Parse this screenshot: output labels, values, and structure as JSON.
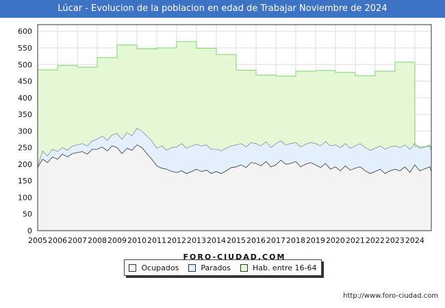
{
  "header": {
    "title": "Lúcar - Evolucion de la poblacion en edad de Trabajar Noviembre de 2024"
  },
  "footer": {
    "url": "http://www.foro-ciudad.com"
  },
  "watermark": "FORO-CIUDAD.COM",
  "colors": {
    "title_bg": "#3d73c5",
    "hab_fill": "#e4f8d6",
    "hab_line": "#7cd66a",
    "parados_fill": "#e3f0fc",
    "parados_line": "#7a8f9f",
    "ocupados_fill": "#f3f3f3",
    "ocupados_line": "#333333",
    "grid": "#dddddd",
    "axis": "#333333"
  },
  "chart_data": {
    "type": "area",
    "title": "Lúcar - Evolucion de la poblacion en edad de Trabajar Noviembre de 2024",
    "xlabel": "",
    "ylabel": "",
    "xlim": [
      2005,
      2024.83
    ],
    "ylim": [
      0,
      620
    ],
    "y_ticks": [
      0,
      50,
      100,
      150,
      200,
      250,
      300,
      350,
      400,
      450,
      500,
      550,
      600
    ],
    "x_ticks": [
      "2005",
      "2006",
      "2007",
      "2008",
      "2009",
      "2010",
      "2011",
      "2012",
      "2013",
      "2014",
      "2015",
      "2016",
      "2017",
      "2018",
      "2019",
      "2020",
      "2021",
      "2022",
      "2023",
      "2024"
    ],
    "legend": [
      "Ocupados",
      "Parados",
      "Hab. entre 16-64"
    ],
    "legend_position": "bottom",
    "grid": true,
    "series": [
      {
        "name": "Hab. entre 16-64",
        "style": "step",
        "x": [
          2005,
          2006,
          2007,
          2008,
          2009,
          2010,
          2011,
          2012,
          2013,
          2014,
          2015,
          2016,
          2017,
          2018,
          2019,
          2020,
          2021,
          2022,
          2023,
          2024,
          2024.83
        ],
        "values": [
          484,
          497,
          492,
          521,
          559,
          547,
          550,
          569,
          549,
          530,
          483,
          468,
          465,
          480,
          482,
          476,
          466,
          480,
          507,
          253,
          253
        ]
      },
      {
        "name": "Parados",
        "style": "line",
        "x": [
          2005,
          2005.25,
          2005.5,
          2005.75,
          2006,
          2006.25,
          2006.5,
          2006.75,
          2007,
          2007.25,
          2007.5,
          2007.75,
          2008,
          2008.25,
          2008.5,
          2008.75,
          2009,
          2009.25,
          2009.5,
          2009.75,
          2010,
          2010.25,
          2010.5,
          2010.75,
          2011,
          2011.25,
          2011.5,
          2011.75,
          2012,
          2012.25,
          2012.5,
          2012.75,
          2013,
          2013.25,
          2013.5,
          2013.75,
          2014,
          2014.25,
          2014.5,
          2014.75,
          2015,
          2015.25,
          2015.5,
          2015.75,
          2016,
          2016.25,
          2016.5,
          2016.75,
          2017,
          2017.25,
          2017.5,
          2017.75,
          2018,
          2018.25,
          2018.5,
          2018.75,
          2019,
          2019.25,
          2019.5,
          2019.75,
          2020,
          2020.25,
          2020.5,
          2020.75,
          2021,
          2021.25,
          2021.5,
          2021.75,
          2022,
          2022.25,
          2022.5,
          2022.75,
          2023,
          2023.25,
          2023.5,
          2023.75,
          2024,
          2024.25,
          2024.5,
          2024.75,
          2024.83
        ],
        "values": [
          192,
          240,
          225,
          245,
          238,
          250,
          242,
          255,
          258,
          262,
          255,
          270,
          275,
          285,
          272,
          288,
          292,
          275,
          295,
          285,
          308,
          300,
          285,
          270,
          248,
          255,
          242,
          250,
          252,
          262,
          248,
          255,
          260,
          255,
          258,
          245,
          245,
          240,
          248,
          255,
          258,
          262,
          252,
          265,
          262,
          255,
          268,
          250,
          262,
          270,
          258,
          262,
          265,
          252,
          260,
          265,
          262,
          255,
          268,
          255,
          258,
          250,
          262,
          248,
          255,
          262,
          250,
          242,
          248,
          255,
          245,
          252,
          255,
          250,
          258,
          245,
          262,
          248,
          252,
          258,
          240
        ]
      },
      {
        "name": "Ocupados",
        "style": "line",
        "x": [
          2005,
          2005.25,
          2005.5,
          2005.75,
          2006,
          2006.25,
          2006.5,
          2006.75,
          2007,
          2007.25,
          2007.5,
          2007.75,
          2008,
          2008.25,
          2008.5,
          2008.75,
          2009,
          2009.25,
          2009.5,
          2009.75,
          2010,
          2010.25,
          2010.5,
          2010.75,
          2011,
          2011.25,
          2011.5,
          2011.75,
          2012,
          2012.25,
          2012.5,
          2012.75,
          2013,
          2013.25,
          2013.5,
          2013.75,
          2014,
          2014.25,
          2014.5,
          2014.75,
          2015,
          2015.25,
          2015.5,
          2015.75,
          2016,
          2016.25,
          2016.5,
          2016.75,
          2017,
          2017.25,
          2017.5,
          2017.75,
          2018,
          2018.25,
          2018.5,
          2018.75,
          2019,
          2019.25,
          2019.5,
          2019.75,
          2020,
          2020.25,
          2020.5,
          2020.75,
          2021,
          2021.25,
          2021.5,
          2021.75,
          2022,
          2022.25,
          2022.5,
          2022.75,
          2023,
          2023.25,
          2023.5,
          2023.75,
          2024,
          2024.25,
          2024.5,
          2024.75,
          2024.83
        ],
        "values": [
          190,
          215,
          205,
          222,
          215,
          230,
          222,
          232,
          235,
          238,
          230,
          245,
          245,
          252,
          240,
          255,
          250,
          232,
          248,
          242,
          258,
          250,
          232,
          215,
          195,
          188,
          185,
          178,
          175,
          180,
          172,
          178,
          185,
          178,
          182,
          172,
          178,
          172,
          180,
          190,
          192,
          198,
          190,
          205,
          202,
          195,
          208,
          192,
          198,
          212,
          200,
          202,
          208,
          192,
          200,
          205,
          198,
          190,
          202,
          185,
          192,
          180,
          195,
          182,
          188,
          192,
          180,
          172,
          178,
          185,
          172,
          180,
          185,
          180,
          192,
          175,
          198,
          180,
          186,
          192,
          178
        ]
      }
    ]
  },
  "legend": {
    "ocupados": "Ocupados",
    "parados": "Parados",
    "hab": "Hab. entre 16-64"
  }
}
